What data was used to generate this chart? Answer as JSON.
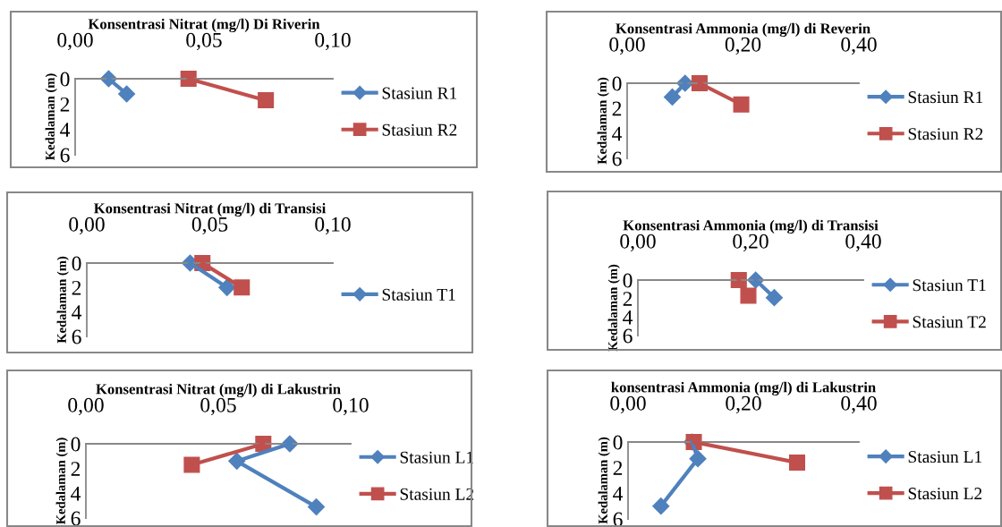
{
  "chart_data": [
    {
      "type": "line",
      "title": "Konsentrasi Nitrat (mg/l) Di Riverin",
      "ylabel": "Kedalaman (m)",
      "xlim": [
        0,
        0.1
      ],
      "xticks": [
        {
          "value": 0,
          "label": "0,00"
        },
        {
          "value": 0.05,
          "label": "0,05"
        },
        {
          "value": 0.1,
          "label": "0,10"
        }
      ],
      "ylim": [
        6,
        0
      ],
      "yticks": [
        0,
        2,
        4,
        6
      ],
      "legend": "right",
      "series": [
        {
          "name": "Stasiun R1",
          "color": "#4f81bd",
          "marker": "diamond",
          "x": [
            0.013,
            0.02
          ],
          "values": [
            0,
            1.2
          ]
        },
        {
          "name": "Stasiun R2",
          "color": "#c0504d",
          "marker": "square",
          "x": [
            0.044,
            0.074
          ],
          "values": [
            0,
            1.7
          ]
        }
      ]
    },
    {
      "type": "line",
      "title": "Konsentrasi Ammonia (mg/l) di Reverin",
      "ylabel": "Kedalaman (m)",
      "xlim": [
        0,
        0.4
      ],
      "xticks": [
        {
          "value": 0,
          "label": "0,00"
        },
        {
          "value": 0.2,
          "label": "0,20"
        },
        {
          "value": 0.4,
          "label": "0,40"
        }
      ],
      "ylim": [
        6,
        0
      ],
      "yticks": [
        0,
        2,
        4,
        6
      ],
      "legend": "right",
      "series": [
        {
          "name": "Stasiun R1",
          "color": "#4f81bd",
          "marker": "diamond",
          "x": [
            0.1,
            0.078
          ],
          "values": [
            0,
            1.1
          ]
        },
        {
          "name": "Stasiun R2",
          "color": "#c0504d",
          "marker": "square",
          "x": [
            0.125,
            0.197
          ],
          "values": [
            0,
            1.7
          ]
        }
      ]
    },
    {
      "type": "line",
      "title": "Konsentrasi Nitrat (mg/l) di Transisi",
      "ylabel": "Kedalaman (m)",
      "xlim": [
        0,
        0.1
      ],
      "xticks": [
        {
          "value": 0,
          "label": "0,00"
        },
        {
          "value": 0.05,
          "label": "0,05"
        },
        {
          "value": 0.1,
          "label": "0,10"
        }
      ],
      "ylim": [
        6,
        0
      ],
      "yticks": [
        0,
        2,
        4,
        6
      ],
      "legend": "right",
      "series": [
        {
          "name": "Stasiun T1",
          "color": "#4f81bd",
          "marker": "diamond",
          "x": [
            0.042,
            0.057
          ],
          "values": [
            0,
            2.0
          ]
        },
        {
          "color": "#c0504d",
          "marker": "square",
          "x": [
            0.047,
            0.063
          ],
          "values": [
            0,
            2.0
          ]
        }
      ]
    },
    {
      "type": "line",
      "title": "Konsentrasi Ammonia (mg/l) di Transisi",
      "ylabel": "Kedalaman (m)",
      "xlim": [
        0,
        0.4
      ],
      "xticks": [
        {
          "value": 0,
          "label": "0,00"
        },
        {
          "value": 0.2,
          "label": "0,20"
        },
        {
          "value": 0.4,
          "label": "0,40"
        }
      ],
      "ylim": [
        6,
        0
      ],
      "yticks": [
        0,
        2,
        4,
        6
      ],
      "legend": "right",
      "series": [
        {
          "name": "Stasiun T1",
          "color": "#4f81bd",
          "marker": "diamond",
          "x": [
            0.209,
            0.242
          ],
          "values": [
            0,
            1.9
          ]
        },
        {
          "name": "Stasiun T2",
          "color": "#c0504d",
          "marker": "square",
          "x": [
            0.179,
            0.196
          ],
          "values": [
            0,
            1.7
          ]
        }
      ]
    },
    {
      "type": "line",
      "title": "Konsentrasi Nitrat (mg/l) di Lakustrin",
      "ylabel": "Kedalaman (m)",
      "xlim": [
        0,
        0.1
      ],
      "xticks": [
        {
          "value": 0,
          "label": "0,00"
        },
        {
          "value": 0.05,
          "label": "0,05"
        },
        {
          "value": 0.1,
          "label": "0,10"
        }
      ],
      "ylim": [
        6,
        0
      ],
      "yticks": [
        0,
        2,
        4,
        6
      ],
      "legend": "right",
      "series": [
        {
          "name": "Stasiun L1",
          "color": "#4f81bd",
          "marker": "diamond",
          "x": [
            0.077,
            0.057,
            0.087
          ],
          "values": [
            0,
            1.4,
            5.1
          ]
        },
        {
          "name": "Stasiun L2",
          "color": "#c0504d",
          "marker": "square",
          "x": [
            0.067,
            0.04
          ],
          "values": [
            0,
            1.7
          ]
        }
      ]
    },
    {
      "type": "line",
      "title": "konsentrasi Ammonia (mg/l) di Lakustrin",
      "ylabel": "Kedalaman (m)",
      "xlim": [
        0,
        0.4
      ],
      "xticks": [
        {
          "value": 0,
          "label": "0,00"
        },
        {
          "value": 0.2,
          "label": "0,20"
        },
        {
          "value": 0.4,
          "label": "0,40"
        }
      ],
      "ylim": [
        6,
        0
      ],
      "yticks": [
        0,
        2,
        4,
        6
      ],
      "legend": "right",
      "series": [
        {
          "name": "Stasiun L1",
          "color": "#4f81bd",
          "marker": "diamond",
          "x": [
            0.111,
            0.121,
            0.057
          ],
          "values": [
            0,
            1.3,
            5.0
          ]
        },
        {
          "name": "Stasiun L2",
          "color": "#c0504d",
          "marker": "square",
          "x": [
            0.114,
            0.293
          ],
          "values": [
            0,
            1.6
          ]
        }
      ]
    }
  ]
}
